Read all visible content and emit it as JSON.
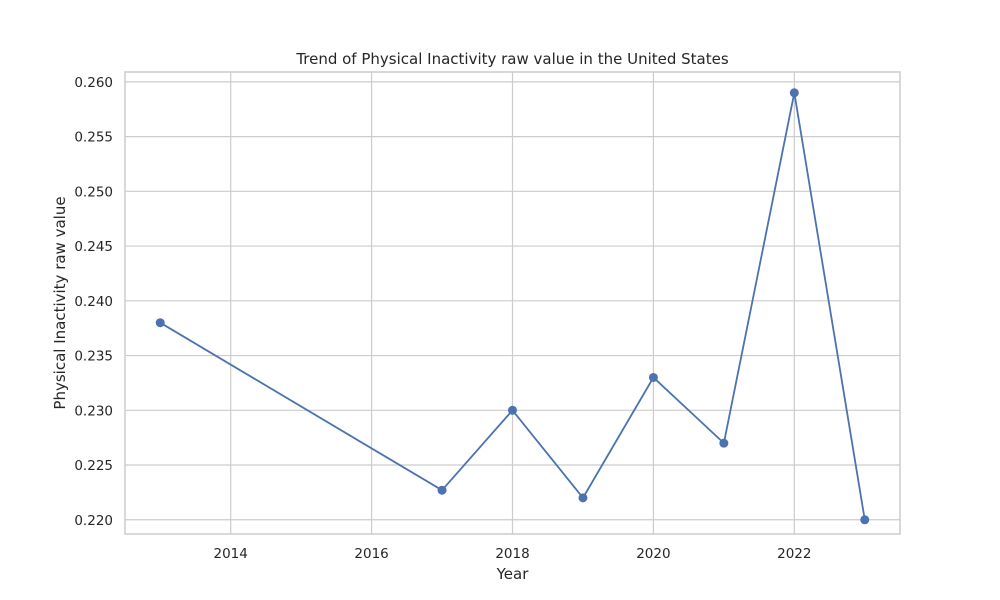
{
  "chart_data": {
    "type": "line",
    "title": "Trend of Physical Inactivity raw value in the United States",
    "xlabel": "Year",
    "ylabel": "Physical Inactivity raw value",
    "xlim": [
      2012.5,
      2023.5
    ],
    "ylim": [
      0.2187,
      0.2609
    ],
    "xticks": [
      2014,
      2016,
      2018,
      2020,
      2022
    ],
    "xtick_labels": [
      "2014",
      "2016",
      "2018",
      "2020",
      "2022"
    ],
    "yticks": [
      0.22,
      0.225,
      0.23,
      0.235,
      0.24,
      0.245,
      0.25,
      0.255,
      0.26
    ],
    "ytick_labels": [
      "0.220",
      "0.225",
      "0.230",
      "0.235",
      "0.240",
      "0.245",
      "0.250",
      "0.255",
      "0.260"
    ],
    "grid": true,
    "legend": false,
    "series": [
      {
        "color": "#4c72b0",
        "marker": "circle",
        "x": [
          2013,
          2017,
          2018,
          2019,
          2020,
          2021,
          2022,
          2023
        ],
        "y": [
          0.238,
          0.2227,
          0.23,
          0.222,
          0.233,
          0.227,
          0.259,
          0.22
        ]
      }
    ]
  }
}
